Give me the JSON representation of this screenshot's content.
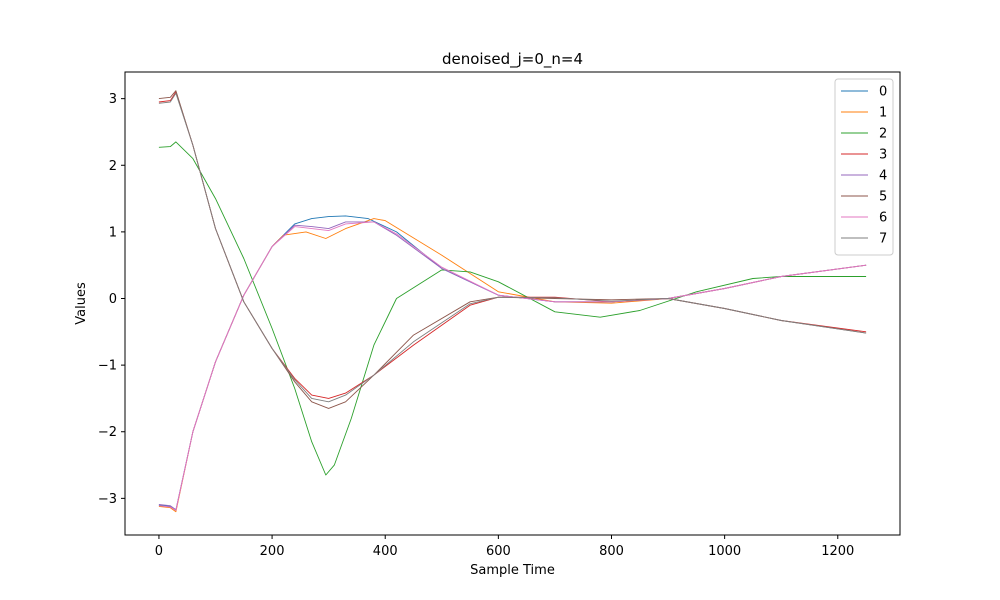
{
  "chart_data": {
    "type": "line",
    "title": "denoised_j=0_n=4",
    "xlabel": "Sample Time",
    "ylabel": "Values",
    "xlim": [
      -60,
      1310
    ],
    "ylim": [
      -3.55,
      3.4
    ],
    "xticks": [
      0,
      200,
      400,
      600,
      800,
      1000,
      1200
    ],
    "yticks": [
      -3,
      -2,
      -1,
      0,
      1,
      2,
      3
    ],
    "xtick_labels": [
      "0",
      "200",
      "400",
      "600",
      "800",
      "1000",
      "1200"
    ],
    "ytick_labels": [
      "−3",
      "−2",
      "−1",
      "0",
      "1",
      "2",
      "3"
    ],
    "grid": false,
    "legend_position": "top-right",
    "series": [
      {
        "name": "0",
        "color": "#1f77b4",
        "x": [
          0,
          20,
          30,
          60,
          100,
          150,
          200,
          240,
          270,
          300,
          330,
          370,
          420,
          500,
          600,
          700,
          800,
          900,
          1000,
          1100,
          1250
        ],
        "y": [
          -3.1,
          -3.12,
          -3.18,
          -2.0,
          -0.95,
          0.05,
          0.78,
          1.12,
          1.2,
          1.23,
          1.24,
          1.2,
          1.0,
          0.45,
          0.05,
          -0.05,
          -0.05,
          0.0,
          0.15,
          0.33,
          0.5
        ]
      },
      {
        "name": "1",
        "color": "#ff7f0e",
        "x": [
          0,
          20,
          30,
          60,
          100,
          150,
          200,
          220,
          260,
          295,
          330,
          380,
          400,
          500,
          600,
          700,
          800,
          900,
          1000,
          1100,
          1250
        ],
        "y": [
          -3.12,
          -3.14,
          -3.2,
          -2.0,
          -0.95,
          0.05,
          0.78,
          0.95,
          1.0,
          0.9,
          1.05,
          1.2,
          1.17,
          0.65,
          0.1,
          -0.05,
          -0.07,
          0.0,
          0.15,
          0.33,
          0.5
        ]
      },
      {
        "name": "2",
        "color": "#2ca02c",
        "x": [
          0,
          20,
          30,
          60,
          100,
          150,
          200,
          240,
          270,
          295,
          310,
          340,
          380,
          420,
          500,
          550,
          600,
          700,
          780,
          850,
          950,
          1050,
          1100,
          1250
        ],
        "y": [
          2.27,
          2.28,
          2.35,
          2.1,
          1.5,
          0.6,
          -0.45,
          -1.35,
          -2.15,
          -2.65,
          -2.5,
          -1.8,
          -0.7,
          0.0,
          0.43,
          0.4,
          0.25,
          -0.2,
          -0.28,
          -0.18,
          0.1,
          0.3,
          0.33,
          0.33
        ]
      },
      {
        "name": "3",
        "color": "#d62728",
        "x": [
          0,
          20,
          30,
          60,
          100,
          150,
          200,
          240,
          270,
          300,
          330,
          380,
          450,
          550,
          600,
          700,
          800,
          900,
          1000,
          1100,
          1250
        ],
        "y": [
          2.95,
          2.97,
          3.1,
          2.3,
          1.05,
          -0.05,
          -0.75,
          -1.2,
          -1.45,
          -1.5,
          -1.42,
          -1.15,
          -0.7,
          -0.1,
          0.02,
          0.02,
          -0.05,
          0.0,
          -0.15,
          -0.33,
          -0.5
        ]
      },
      {
        "name": "4",
        "color": "#9467bd",
        "x": [
          0,
          20,
          30,
          60,
          100,
          150,
          200,
          240,
          270,
          300,
          330,
          380,
          420,
          500,
          600,
          700,
          800,
          900,
          1000,
          1100,
          1250
        ],
        "y": [
          -3.09,
          -3.11,
          -3.17,
          -2.0,
          -0.95,
          0.05,
          0.78,
          1.1,
          1.08,
          1.05,
          1.15,
          1.15,
          0.95,
          0.45,
          0.05,
          -0.05,
          -0.05,
          0.0,
          0.15,
          0.33,
          0.5
        ]
      },
      {
        "name": "5",
        "color": "#8c564b",
        "x": [
          0,
          20,
          30,
          60,
          100,
          150,
          200,
          240,
          270,
          300,
          330,
          380,
          450,
          550,
          600,
          700,
          800,
          900,
          1000,
          1100,
          1250
        ],
        "y": [
          3.0,
          3.02,
          3.12,
          2.3,
          1.05,
          -0.05,
          -0.75,
          -1.25,
          -1.55,
          -1.65,
          -1.55,
          -1.15,
          -0.55,
          -0.05,
          0.02,
          0.0,
          -0.02,
          0.0,
          -0.15,
          -0.33,
          -0.52
        ]
      },
      {
        "name": "6",
        "color": "#e377c2",
        "x": [
          0,
          20,
          30,
          60,
          100,
          150,
          200,
          240,
          270,
          300,
          330,
          380,
          420,
          500,
          600,
          700,
          800,
          900,
          1000,
          1100,
          1250
        ],
        "y": [
          -3.11,
          -3.13,
          -3.18,
          -2.0,
          -0.95,
          0.05,
          0.78,
          1.08,
          1.05,
          1.02,
          1.12,
          1.15,
          0.97,
          0.47,
          0.05,
          -0.05,
          -0.05,
          0.0,
          0.15,
          0.33,
          0.5
        ]
      },
      {
        "name": "7",
        "color": "#7f7f7f",
        "x": [
          0,
          20,
          30,
          60,
          100,
          150,
          200,
          240,
          270,
          300,
          330,
          380,
          450,
          550,
          600,
          700,
          800,
          900,
          1000,
          1100,
          1250
        ],
        "y": [
          2.93,
          2.95,
          3.08,
          2.3,
          1.05,
          -0.05,
          -0.75,
          -1.22,
          -1.5,
          -1.55,
          -1.45,
          -1.15,
          -0.65,
          -0.08,
          0.02,
          0.01,
          -0.04,
          0.0,
          -0.15,
          -0.33,
          -0.52
        ]
      }
    ]
  }
}
